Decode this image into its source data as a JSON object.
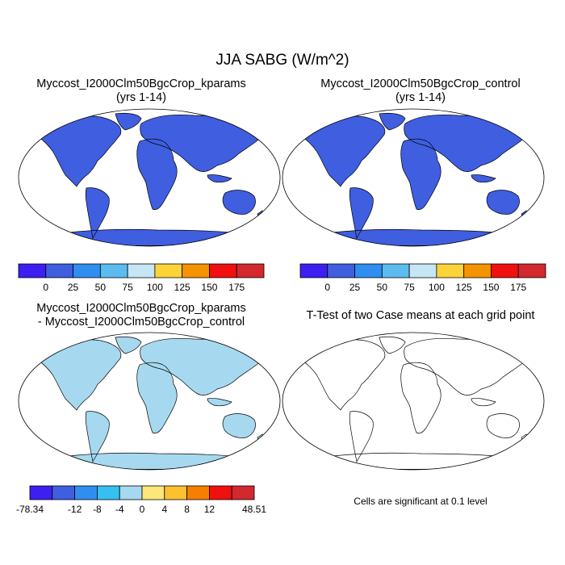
{
  "figure": {
    "title": "JJA SABG (W/m^2)",
    "note": "Cells are significant at 0.1 level"
  },
  "panels": [
    {
      "id": "kparams",
      "title_line1": "Myccost_I2000Clm50BgcCrop_kparams",
      "title_line2": "(yrs 1-14)"
    },
    {
      "id": "control",
      "title_line1": "Myccost_I2000Clm50BgcCrop_control",
      "title_line2": "(yrs 1-14)"
    },
    {
      "id": "difference",
      "title_line1": "Myccost_I2000Clm50BgcCrop_kparams",
      "title_line2": "- Myccost_I2000Clm50BgcCrop_control"
    },
    {
      "id": "ttest",
      "title_line1": "T-Test of two Case means at each grid point"
    }
  ],
  "colorbars": {
    "absolute": {
      "colors": [
        "#3d1ff2",
        "#3f5ee0",
        "#2f8ef0",
        "#5cbcf0",
        "#c6e6f5",
        "#fdd33a",
        "#f69300",
        "#f01010",
        "#d2282e"
      ],
      "labels": [
        "0",
        "25",
        "50",
        "75",
        "100",
        "125",
        "150",
        "175"
      ]
    },
    "difference": {
      "colors": [
        "#3d1ff2",
        "#3f5ee0",
        "#2f8ef0",
        "#36c0f2",
        "#a6d9ef",
        "#fde67a",
        "#fdc02e",
        "#f67e00",
        "#f01010",
        "#d2282e"
      ],
      "labels": [
        "-78.34",
        "-12",
        "-8",
        "-4",
        "0",
        "4",
        "8",
        "12",
        "48.51"
      ],
      "label_edges": [
        0,
        2,
        3,
        4,
        5,
        6,
        7,
        8,
        10
      ]
    }
  },
  "map_colors": {
    "ocean": "#ffffff",
    "land_base_abs": "#3f5ee0",
    "land_base_diff": "#a6d9ef",
    "significant": "#e00000",
    "antarctica_diff": "#fde67a"
  }
}
